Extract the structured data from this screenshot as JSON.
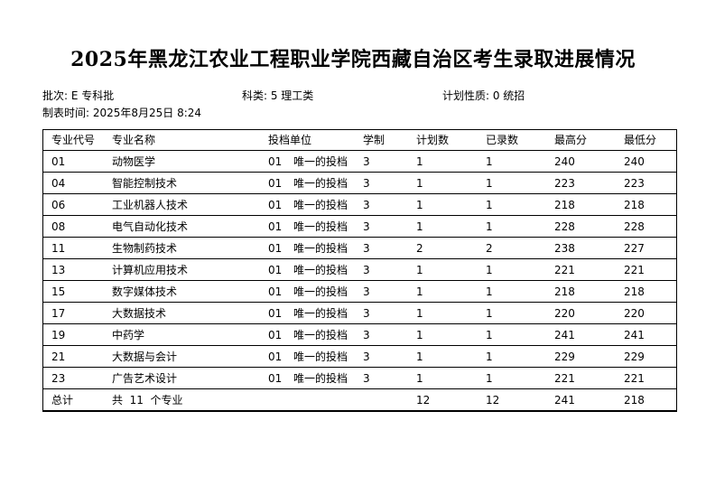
{
  "title": "2025年黑龙江农业工程职业学院西藏自治区考生录取进展情况",
  "meta": {
    "batch": "批次: E 专科批",
    "category": "科类: 5 理工类",
    "plan_type": "计划性质: 0 统招",
    "created": "制表时间: 2025年8月25日 8:24"
  },
  "table": {
    "headers": [
      "专业代号",
      "专业名称",
      "投档单位",
      "学制",
      "计划数",
      "已录数",
      "最高分",
      "最低分"
    ],
    "rows": [
      {
        "code": "01",
        "name": "动物医学",
        "unit_code": "01",
        "unit": "唯一的投档",
        "years": "3",
        "plan": "1",
        "admitted": "1",
        "max": "240",
        "min": "240"
      },
      {
        "code": "04",
        "name": "智能控制技术",
        "unit_code": "01",
        "unit": "唯一的投档",
        "years": "3",
        "plan": "1",
        "admitted": "1",
        "max": "223",
        "min": "223"
      },
      {
        "code": "06",
        "name": "工业机器人技术",
        "unit_code": "01",
        "unit": "唯一的投档",
        "years": "3",
        "plan": "1",
        "admitted": "1",
        "max": "218",
        "min": "218"
      },
      {
        "code": "08",
        "name": "电气自动化技术",
        "unit_code": "01",
        "unit": "唯一的投档",
        "years": "3",
        "plan": "1",
        "admitted": "1",
        "max": "228",
        "min": "228"
      },
      {
        "code": "11",
        "name": "生物制药技术",
        "unit_code": "01",
        "unit": "唯一的投档",
        "years": "3",
        "plan": "2",
        "admitted": "2",
        "max": "238",
        "min": "227"
      },
      {
        "code": "13",
        "name": "计算机应用技术",
        "unit_code": "01",
        "unit": "唯一的投档",
        "years": "3",
        "plan": "1",
        "admitted": "1",
        "max": "221",
        "min": "221"
      },
      {
        "code": "15",
        "name": "数字媒体技术",
        "unit_code": "01",
        "unit": "唯一的投档",
        "years": "3",
        "plan": "1",
        "admitted": "1",
        "max": "218",
        "min": "218"
      },
      {
        "code": "17",
        "name": "大数据技术",
        "unit_code": "01",
        "unit": "唯一的投档",
        "years": "3",
        "plan": "1",
        "admitted": "1",
        "max": "220",
        "min": "220"
      },
      {
        "code": "19",
        "name": "中药学",
        "unit_code": "01",
        "unit": "唯一的投档",
        "years": "3",
        "plan": "1",
        "admitted": "1",
        "max": "241",
        "min": "241"
      },
      {
        "code": "21",
        "name": "大数据与会计",
        "unit_code": "01",
        "unit": "唯一的投档",
        "years": "3",
        "plan": "1",
        "admitted": "1",
        "max": "229",
        "min": "229"
      },
      {
        "code": "23",
        "name": "广告艺术设计",
        "unit_code": "01",
        "unit": "唯一的投档",
        "years": "3",
        "plan": "1",
        "admitted": "1",
        "max": "221",
        "min": "221"
      }
    ],
    "total": {
      "label": "总计",
      "count": "共  11  个专业",
      "plan": "12",
      "admitted": "12",
      "max": "241",
      "min": "218"
    }
  }
}
